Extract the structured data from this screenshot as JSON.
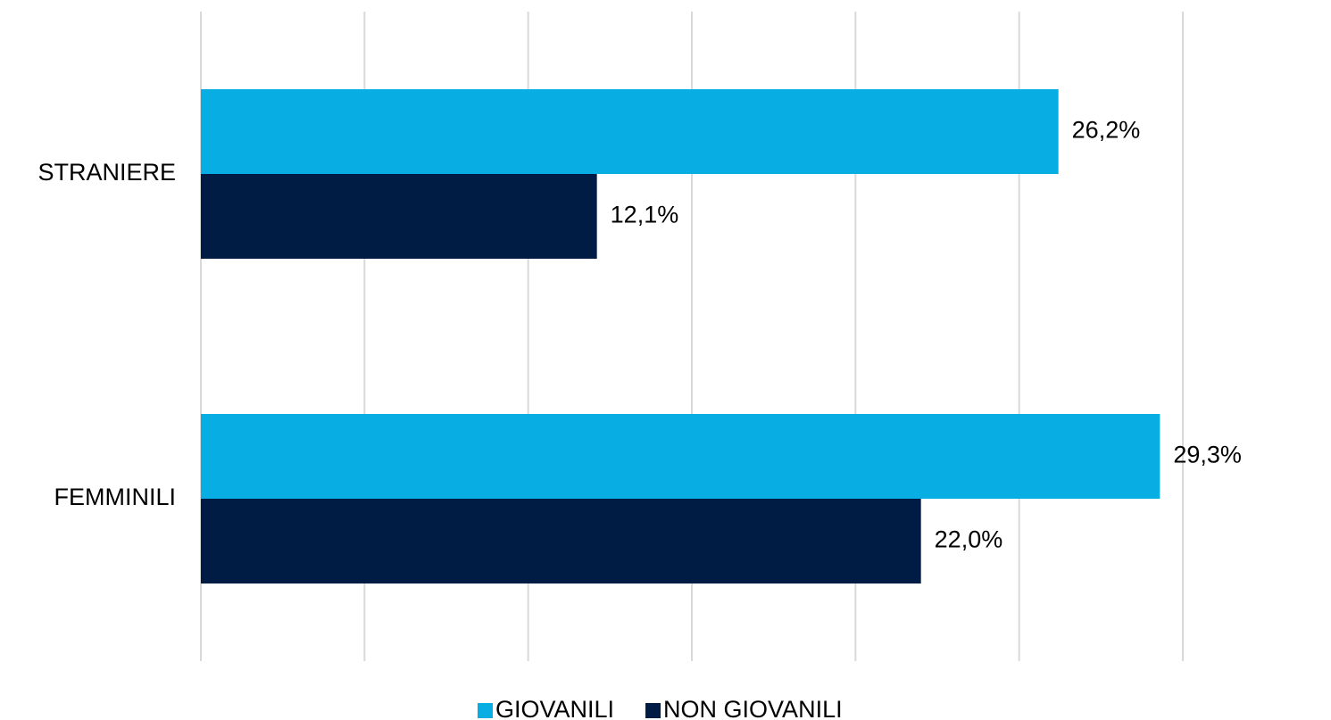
{
  "chart_data": {
    "type": "barh",
    "categories": [
      "STRANIERE",
      "FEMMINILI"
    ],
    "series": [
      {
        "name": "GIOVANILI",
        "color": "#08aee3",
        "values": [
          26.2,
          29.3
        ],
        "value_labels": [
          "26,2%",
          "29,3%"
        ]
      },
      {
        "name": "NON GIOVANILI",
        "color": "#001b44",
        "values": [
          12.1,
          22.0
        ],
        "value_labels": [
          "12,1%",
          "22,0%"
        ]
      }
    ],
    "xlim": [
      0,
      30
    ],
    "xticks": [
      0,
      5,
      10,
      15,
      20,
      25,
      30
    ],
    "grid": true,
    "legend": "bottom"
  }
}
